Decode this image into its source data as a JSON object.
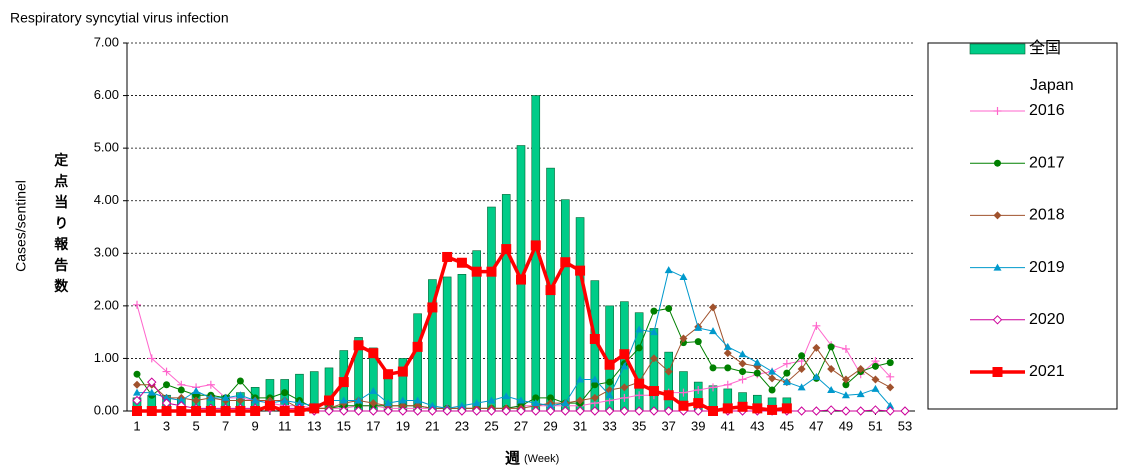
{
  "chart_data": {
    "type": "bar-line",
    "title": "Respiratory syncytial virus infection",
    "ylabel": "Cases/sentinel",
    "ylabel_ja": "定点当り報告数",
    "xlabel": "週",
    "xlabel_sub": "(Week)",
    "legend_subtitle": "Japan",
    "categories": [
      1,
      null,
      3,
      null,
      5,
      null,
      7,
      null,
      9,
      null,
      11,
      null,
      13,
      null,
      15,
      null,
      17,
      null,
      19,
      null,
      21,
      null,
      23,
      null,
      25,
      null,
      27,
      null,
      29,
      null,
      31,
      null,
      33,
      null,
      35,
      null,
      37,
      null,
      39,
      null,
      41,
      null,
      43,
      null,
      45,
      null,
      47,
      null,
      49,
      null,
      51,
      null,
      53
    ],
    "ylim": [
      0,
      7
    ],
    "yticks": [
      {
        "value": 0,
        "label": "0.00"
      },
      {
        "value": 1,
        "label": "1.00"
      },
      {
        "value": 2,
        "label": "2.00"
      },
      {
        "value": 3,
        "label": "3.00"
      },
      {
        "value": 4,
        "label": "4.00"
      },
      {
        "value": 5,
        "label": "5.00"
      },
      {
        "value": 6,
        "label": "6.00"
      },
      {
        "value": 7,
        "label": "7.00"
      }
    ],
    "grid": true,
    "series": [
      {
        "name": "全国",
        "kind": "bar",
        "color": "#00cc88",
        "values": [
          0.25,
          0.3,
          0.3,
          0.25,
          0.35,
          0.3,
          0.3,
          0.35,
          0.45,
          0.6,
          0.6,
          0.7,
          0.75,
          0.82,
          1.15,
          1.4,
          1.2,
          0.78,
          1.0,
          1.85,
          2.5,
          2.55,
          2.6,
          3.05,
          3.88,
          4.12,
          5.05,
          6.0,
          4.62,
          4.02,
          3.68,
          2.48,
          2.0,
          2.08,
          1.87,
          1.57,
          1.12,
          0.75,
          0.55,
          0.48,
          0.42,
          0.35,
          0.3,
          0.25,
          0.25,
          null,
          null,
          null,
          null,
          null,
          null,
          null,
          null
        ]
      },
      {
        "name": "2016",
        "kind": "line",
        "marker": "plus",
        "color": "#ff66cc",
        "values": [
          2.02,
          1.0,
          0.75,
          0.5,
          0.45,
          0.5,
          0.25,
          0.25,
          0.2,
          0.15,
          0.1,
          0.1,
          0.05,
          0.05,
          0.05,
          0.1,
          0.1,
          0.05,
          0.05,
          0.05,
          0.05,
          0.05,
          0.05,
          0.05,
          0.05,
          0.05,
          0.1,
          0.1,
          0.1,
          0.1,
          0.1,
          0.15,
          0.2,
          0.25,
          0.3,
          0.3,
          0.35,
          0.35,
          0.4,
          0.45,
          0.5,
          0.6,
          0.7,
          0.75,
          0.9,
          0.95,
          1.62,
          1.25,
          1.18,
          0.7,
          0.95,
          0.65,
          null
        ]
      },
      {
        "name": "2017",
        "kind": "line",
        "marker": "circle",
        "color": "#008000",
        "values": [
          0.7,
          0.3,
          0.5,
          0.4,
          0.3,
          0.3,
          0.25,
          0.57,
          0.25,
          0.25,
          0.35,
          0.2,
          0.05,
          0.05,
          0.1,
          0.1,
          0.1,
          0.1,
          0.1,
          0.1,
          0.05,
          0.05,
          0.05,
          0.05,
          0.05,
          0.05,
          0.1,
          0.25,
          0.25,
          0.15,
          0.15,
          0.5,
          0.55,
          0.9,
          1.2,
          1.9,
          1.95,
          1.3,
          1.32,
          0.82,
          0.82,
          0.75,
          0.72,
          0.4,
          0.72,
          1.05,
          0.62,
          1.22,
          0.5,
          0.75,
          0.85,
          0.92,
          null
        ]
      },
      {
        "name": "2018",
        "kind": "line",
        "marker": "diamond",
        "color": "#a0522d",
        "values": [
          0.5,
          0.5,
          0.25,
          0.25,
          0.2,
          0.25,
          0.2,
          0.2,
          0.2,
          0.2,
          0.2,
          0.05,
          0.05,
          0.05,
          0.15,
          0.2,
          0.15,
          0.1,
          0.1,
          0.1,
          0.05,
          0.05,
          0.05,
          0.05,
          0.05,
          0.05,
          0.05,
          0.1,
          0.15,
          0.15,
          0.2,
          0.25,
          0.4,
          0.45,
          0.55,
          1.0,
          0.75,
          1.38,
          1.6,
          1.97,
          1.1,
          0.9,
          0.85,
          0.62,
          0.55,
          0.8,
          1.2,
          0.8,
          0.6,
          0.8,
          0.6,
          0.45,
          null
        ]
      },
      {
        "name": "2019",
        "kind": "line",
        "marker": "triangle",
        "color": "#0099cc",
        "values": [
          0.35,
          0.35,
          0.25,
          0.2,
          0.38,
          0.25,
          0.25,
          0.3,
          0.2,
          0.15,
          0.2,
          0.15,
          0.1,
          0.2,
          0.2,
          0.2,
          0.38,
          0.15,
          0.2,
          0.2,
          0.1,
          0.05,
          0.1,
          0.15,
          0.2,
          0.28,
          0.2,
          0.15,
          0.1,
          0.15,
          0.6,
          0.6,
          0.3,
          0.85,
          1.55,
          1.5,
          2.68,
          2.55,
          1.58,
          1.52,
          1.22,
          1.08,
          0.92,
          0.75,
          0.55,
          0.45,
          0.65,
          0.4,
          0.3,
          0.32,
          0.42,
          0.1,
          null
        ]
      },
      {
        "name": "2020",
        "kind": "line",
        "marker": "hollow-diamond",
        "color": "#cc0099",
        "values": [
          0.2,
          0.55,
          0.15,
          0.1,
          0.05,
          0.05,
          0.05,
          0.05,
          0.05,
          0.05,
          0.05,
          0.05,
          0,
          0,
          0,
          0,
          0,
          0,
          0,
          0,
          0,
          0,
          0,
          0,
          0,
          0,
          0,
          0,
          0,
          0,
          0,
          0,
          0,
          0,
          0,
          0,
          0,
          0,
          0,
          0,
          0,
          0,
          0,
          0,
          0,
          0,
          0,
          0.02,
          0,
          0,
          0.02,
          0,
          0
        ]
      },
      {
        "name": "2021",
        "kind": "line",
        "marker": "square",
        "color": "#ff0000",
        "values": [
          0,
          0,
          0,
          0,
          0,
          0,
          0,
          0,
          0,
          0.1,
          0,
          0,
          0.05,
          0.2,
          0.55,
          1.25,
          1.1,
          0.7,
          0.75,
          1.22,
          1.97,
          2.93,
          2.82,
          2.65,
          2.65,
          3.08,
          2.5,
          3.15,
          2.3,
          2.83,
          2.67,
          1.37,
          0.88,
          1.08,
          0.52,
          0.38,
          0.3,
          0.1,
          0.15,
          0,
          0.05,
          0.08,
          0.05,
          0.02,
          0.05,
          null,
          null,
          null,
          null,
          null,
          null,
          null,
          null
        ]
      }
    ]
  }
}
